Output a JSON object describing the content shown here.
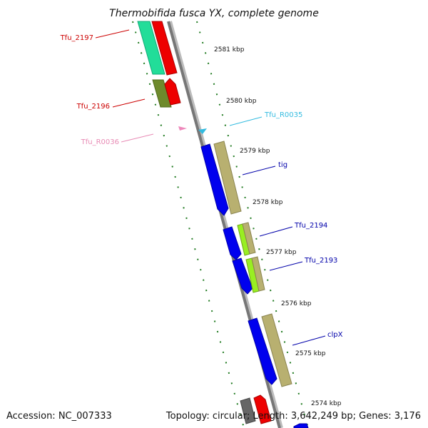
{
  "title": "Thermobifida fusca YX, complete genome",
  "footer": {
    "accession": "Accession: NC_007333",
    "summary": "Topology: circular; Length: 3,642,249 bp; Genes: 3,176"
  },
  "ticks": [
    "2581 kbp",
    "2580 kbp",
    "2579 kbp",
    "2578 kbp",
    "2577 kbp",
    "2576 kbp",
    "2575 kbp",
    "2574 kbp"
  ],
  "gene_labels": [
    {
      "id": "Tfu_2197",
      "color": "#cc0000"
    },
    {
      "id": "Tfu_2196",
      "color": "#cc0000"
    },
    {
      "id": "Tfu_R0036",
      "color": "#e88bb5"
    },
    {
      "id": "Tfu_R0035",
      "color": "#33bbe0"
    },
    {
      "id": "tig",
      "color": "#0000aa"
    },
    {
      "id": "Tfu_2194",
      "color": "#0000aa"
    },
    {
      "id": "Tfu_2193",
      "color": "#0000aa"
    },
    {
      "id": "clpX",
      "color": "#0000aa"
    }
  ],
  "colors": {
    "backbone": "#888888",
    "tick_marks": "#1f7a1f",
    "forward_gene": "#ee0000",
    "reverse_gene": "#0000ee",
    "cog_teal": "#22dd99",
    "cog_olive": "#6e8a2c",
    "cog_khaki": "#b8b070",
    "cog_lime": "#99ee22",
    "rna_pink": "#ee88bb",
    "rna_cyan": "#33bbe0",
    "gray_gene": "#666666"
  }
}
